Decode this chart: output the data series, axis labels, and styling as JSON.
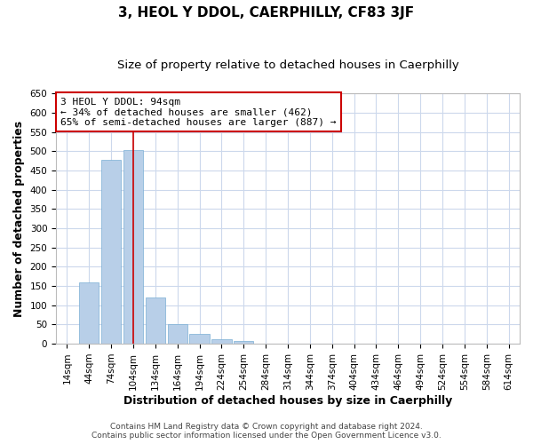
{
  "title": "3, HEOL Y DDOL, CAERPHILLY, CF83 3JF",
  "subtitle": "Size of property relative to detached houses in Caerphilly",
  "xlabel": "Distribution of detached houses by size in Caerphilly",
  "ylabel": "Number of detached properties",
  "bar_labels": [
    "14sqm",
    "44sqm",
    "74sqm",
    "104sqm",
    "134sqm",
    "164sqm",
    "194sqm",
    "224sqm",
    "254sqm",
    "284sqm",
    "314sqm",
    "344sqm",
    "374sqm",
    "404sqm",
    "434sqm",
    "464sqm",
    "494sqm",
    "524sqm",
    "554sqm",
    "584sqm",
    "614sqm"
  ],
  "bar_values": [
    0,
    160,
    478,
    503,
    120,
    50,
    25,
    12,
    8,
    0,
    0,
    0,
    0,
    0,
    0,
    0,
    0,
    0,
    0,
    0,
    0
  ],
  "bar_color": "#b8cfe8",
  "bar_edge_color": "#7aafd4",
  "ylim": [
    0,
    650
  ],
  "yticks": [
    0,
    50,
    100,
    150,
    200,
    250,
    300,
    350,
    400,
    450,
    500,
    550,
    600,
    650
  ],
  "vline_x": 3.0,
  "vline_color": "#cc0000",
  "annotation_title": "3 HEOL Y DDOL: 94sqm",
  "annotation_line1": "← 34% of detached houses are smaller (462)",
  "annotation_line2": "65% of semi-detached houses are larger (887) →",
  "annotation_box_color": "#ffffff",
  "annotation_box_edgecolor": "#cc0000",
  "footer1": "Contains HM Land Registry data © Crown copyright and database right 2024.",
  "footer2": "Contains public sector information licensed under the Open Government Licence v3.0.",
  "background_color": "#ffffff",
  "grid_color": "#ccd8ec",
  "title_fontsize": 11,
  "subtitle_fontsize": 9.5,
  "axis_label_fontsize": 9,
  "tick_fontsize": 7.5,
  "footer_fontsize": 6.5
}
